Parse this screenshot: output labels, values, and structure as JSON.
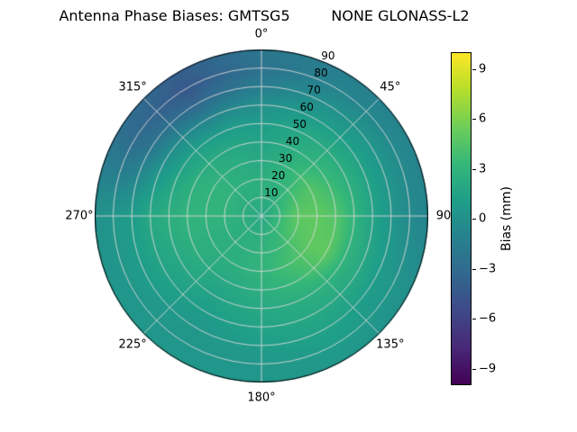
{
  "title": "Antenna Phase Biases: GMTSG5         NONE GLONASS-L2",
  "chart_data": {
    "type": "heatmap",
    "projection": "polar",
    "title": "Antenna Phase Biases: GMTSG5         NONE GLONASS-L2",
    "azimuth_tick_labels": [
      {
        "label": "0°",
        "angle_deg": 0
      },
      {
        "label": "45°",
        "angle_deg": 45
      },
      {
        "label": "90",
        "angle_deg": 90
      },
      {
        "label": "135°",
        "angle_deg": 135
      },
      {
        "label": "180°",
        "angle_deg": 180
      },
      {
        "label": "225°",
        "angle_deg": 225
      },
      {
        "label": "270°",
        "angle_deg": 270
      },
      {
        "label": "315°",
        "angle_deg": 315
      }
    ],
    "radial_tick_labels": [
      {
        "label": "10",
        "r": 10
      },
      {
        "label": "20",
        "r": 20
      },
      {
        "label": "30",
        "r": 30
      },
      {
        "label": "40",
        "r": 40
      },
      {
        "label": "50",
        "r": 50
      },
      {
        "label": "60",
        "r": 60
      },
      {
        "label": "70",
        "r": 70
      },
      {
        "label": "80",
        "r": 80
      },
      {
        "label": "90",
        "r": 90
      }
    ],
    "radial_label_angle_deg": 22.5,
    "r_max": 90,
    "grid_line_color": "#d8d8d8",
    "colormap": {
      "name": "viridis",
      "stops": [
        "#440154",
        "#482878",
        "#3e4989",
        "#31688e",
        "#26828e",
        "#1f9e89",
        "#35b779",
        "#6ece58",
        "#b5de2b",
        "#fde725"
      ]
    },
    "colorbar": {
      "label": "Bias (mm)",
      "vmin": -10,
      "vmax": 10,
      "ticks": [
        {
          "label": "9",
          "value": 9
        },
        {
          "label": "6",
          "value": 6
        },
        {
          "label": "3",
          "value": 3
        },
        {
          "label": "0",
          "value": 0
        },
        {
          "label": "−3",
          "value": -3
        },
        {
          "label": "−6",
          "value": -6
        },
        {
          "label": "−9",
          "value": -9
        }
      ]
    },
    "grid": {
      "azimuth_deg": [
        0,
        30,
        60,
        90,
        120,
        150,
        180,
        210,
        240,
        270,
        300,
        330
      ],
      "radius": [
        0,
        10,
        20,
        30,
        40,
        50,
        60,
        70,
        80,
        90
      ],
      "values_mm": [
        [
          2.0,
          2.0,
          2.0,
          2.0,
          2.0,
          2.0,
          2.0,
          2.0,
          2.0,
          2.0,
          2.0,
          2.0
        ],
        [
          2.5,
          2.5,
          3.0,
          3.5,
          3.5,
          3.0,
          2.5,
          2.5,
          2.5,
          2.5,
          2.5,
          2.5
        ],
        [
          2.5,
          3.0,
          4.0,
          5.0,
          4.5,
          3.5,
          3.0,
          2.5,
          2.5,
          3.0,
          3.0,
          2.5
        ],
        [
          2.0,
          3.0,
          4.5,
          5.0,
          5.0,
          4.0,
          3.0,
          2.5,
          2.5,
          3.0,
          3.0,
          2.5
        ],
        [
          1.5,
          2.5,
          3.5,
          4.5,
          5.0,
          3.5,
          2.5,
          2.0,
          2.5,
          3.0,
          2.5,
          2.0
        ],
        [
          1.0,
          2.0,
          2.5,
          3.0,
          3.0,
          2.5,
          2.0,
          1.5,
          2.0,
          2.5,
          1.5,
          1.0
        ],
        [
          0.0,
          1.0,
          1.5,
          1.5,
          2.0,
          2.0,
          1.5,
          1.0,
          1.5,
          2.0,
          0.0,
          -1.0
        ],
        [
          -1.5,
          0.0,
          0.5,
          0.5,
          1.0,
          1.5,
          1.0,
          0.5,
          1.0,
          1.0,
          -2.0,
          -3.5
        ],
        [
          -2.5,
          -1.0,
          -0.5,
          -0.5,
          0.5,
          1.0,
          0.5,
          0.5,
          0.5,
          0.5,
          -3.0,
          -4.5
        ],
        [
          -2.0,
          -1.5,
          -1.0,
          -1.0,
          0.0,
          0.5,
          0.5,
          0.5,
          0.5,
          0.0,
          -2.5,
          -4.0
        ]
      ]
    }
  }
}
